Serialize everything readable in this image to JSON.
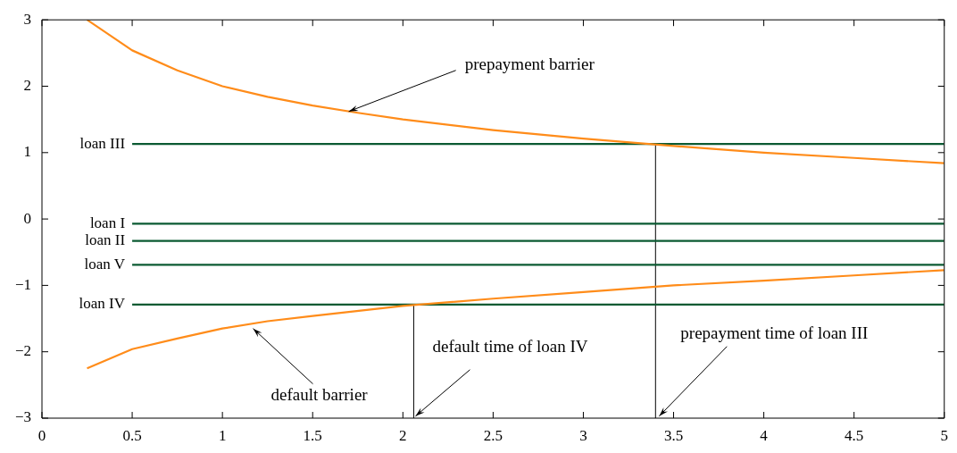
{
  "chart_data": {
    "type": "line",
    "xlim": [
      0,
      5
    ],
    "ylim": [
      -3,
      3
    ],
    "xticks": [
      0,
      0.5,
      1,
      1.5,
      2,
      2.5,
      3,
      3.5,
      4,
      4.5,
      5
    ],
    "yticks": [
      -3,
      -2,
      -1,
      0,
      1,
      2,
      3
    ],
    "marker": "none",
    "line_style": "solid",
    "series": [
      {
        "color": "#ff8c1a",
        "x": [
          0.25,
          0.5,
          0.75,
          1,
          1.25,
          1.5,
          1.75,
          2,
          2.5,
          3,
          3.5,
          4,
          4.5,
          5
        ],
        "values": [
          3.0,
          2.54,
          2.24,
          2.0,
          1.84,
          1.71,
          1.6,
          1.5,
          1.34,
          1.21,
          1.1,
          1.0,
          0.92,
          0.84
        ]
      },
      {
        "color": "#ff8c1a",
        "x": [
          0.25,
          0.5,
          0.75,
          1,
          1.25,
          1.5,
          2,
          2.5,
          3,
          3.5,
          4,
          4.5,
          5
        ],
        "values": [
          -2.25,
          -1.96,
          -1.8,
          -1.65,
          -1.54,
          -1.46,
          -1.31,
          -1.2,
          -1.1,
          -1.0,
          -0.93,
          -0.85,
          -0.77
        ]
      },
      {
        "name": "loan III",
        "color": "#0b5a32",
        "x": [
          0.5,
          5
        ],
        "values": [
          1.13,
          1.13
        ]
      },
      {
        "name": "loan I",
        "color": "#0b5a32",
        "x": [
          0.5,
          5
        ],
        "values": [
          -0.07,
          -0.07
        ]
      },
      {
        "name": "loan II",
        "color": "#0b5a32",
        "x": [
          0.5,
          5
        ],
        "values": [
          -0.33,
          -0.33
        ]
      },
      {
        "name": "loan V",
        "color": "#0b5a32",
        "x": [
          0.5,
          5
        ],
        "values": [
          -0.69,
          -0.69
        ]
      },
      {
        "name": "loan IV",
        "color": "#0b5a32",
        "x": [
          0.5,
          5
        ],
        "values": [
          -1.29,
          -1.29
        ]
      },
      {
        "color": "#000000",
        "x": [
          2.06,
          2.06
        ],
        "values": [
          -3,
          -1.29
        ]
      },
      {
        "color": "#000000",
        "x": [
          3.4,
          3.4
        ],
        "values": [
          -3,
          1.13
        ]
      }
    ],
    "annotations": [
      {
        "text": "prepayment barrier",
        "x": 1.7,
        "y": 1.62
      },
      {
        "text": "default barrier",
        "x": 1.17,
        "y": -1.65
      },
      {
        "text": "default time of loan IV",
        "x": 2.07,
        "y": -2.97
      },
      {
        "text": "prepayment time of loan III",
        "x": 3.42,
        "y": -2.97
      }
    ]
  }
}
